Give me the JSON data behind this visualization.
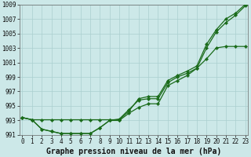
{
  "xlabel": "Graphe pression niveau de la mer (hPa)",
  "hours": [
    0,
    1,
    2,
    3,
    4,
    5,
    6,
    7,
    8,
    9,
    10,
    11,
    12,
    13,
    14,
    15,
    16,
    17,
    18,
    19,
    20,
    21,
    22,
    23
  ],
  "line_upper": [
    993.4,
    993.1,
    993.1,
    993.1,
    993.1,
    993.1,
    993.1,
    993.1,
    993.1,
    993.1,
    993.1,
    994.3,
    996.0,
    996.3,
    996.3,
    998.5,
    999.2,
    999.8,
    1000.5,
    1003.5,
    1005.5,
    1007.0,
    1007.8,
    1009.0
  ],
  "line_mean": [
    993.4,
    993.1,
    991.8,
    991.5,
    991.2,
    991.2,
    991.2,
    991.2,
    992.0,
    993.0,
    993.2,
    994.5,
    995.8,
    996.0,
    996.0,
    998.2,
    999.0,
    999.5,
    1000.2,
    1003.0,
    1005.2,
    1006.5,
    1007.5,
    1008.8
  ],
  "line_lower": [
    993.4,
    993.1,
    991.8,
    991.5,
    991.2,
    991.2,
    991.2,
    991.2,
    992.0,
    993.0,
    993.0,
    994.0,
    994.8,
    995.3,
    995.3,
    997.8,
    998.5,
    999.2,
    1000.2,
    1001.5,
    1003.0,
    1003.2,
    1003.2,
    1003.2
  ],
  "ylim": [
    991,
    1009
  ],
  "xlim": [
    -0.3,
    23.3
  ],
  "yticks": [
    991,
    993,
    995,
    997,
    999,
    1001,
    1003,
    1005,
    1007,
    1009
  ],
  "bg_color": "#cce8e8",
  "grid_color": "#aacfcf",
  "line_color": "#1a6b1a",
  "markersize": 2.2,
  "linewidth": 0.9,
  "xlabel_fontsize": 7,
  "tick_fontsize": 5.5
}
